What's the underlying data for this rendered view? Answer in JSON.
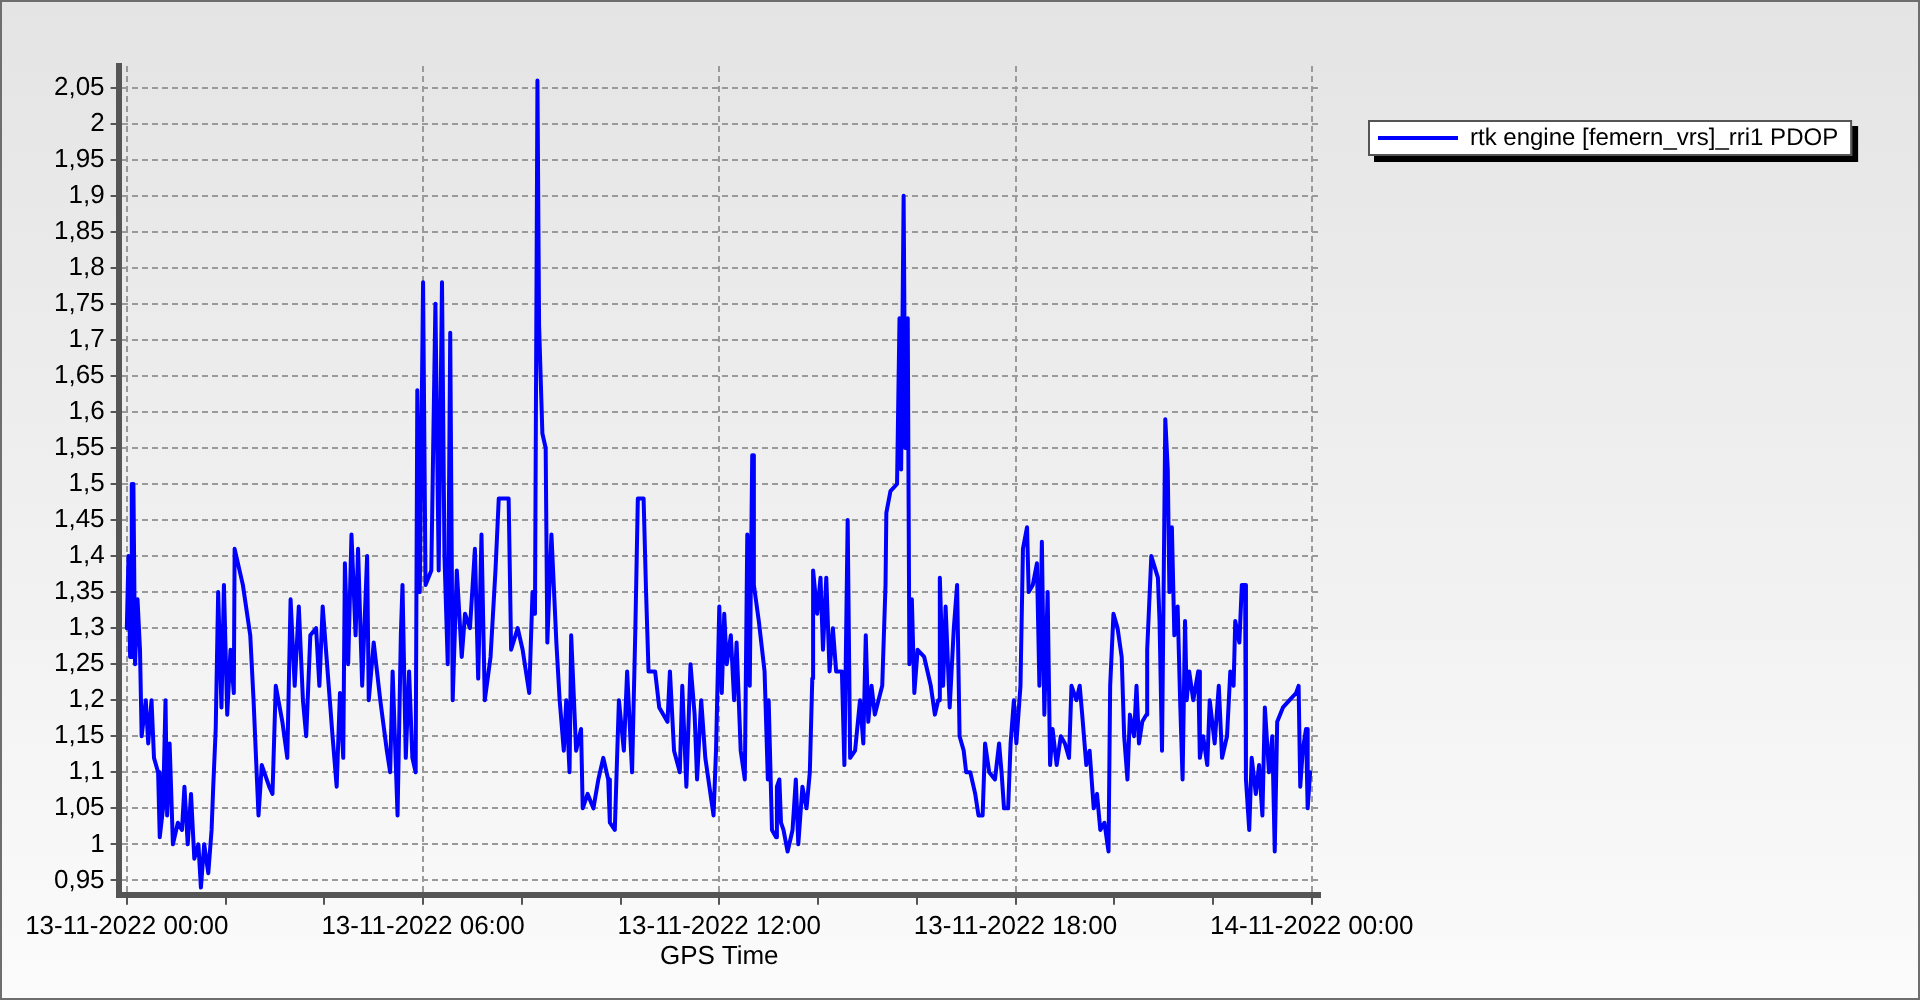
{
  "chart_data": {
    "type": "line",
    "xlabel": "GPS Time",
    "x": [
      "2022-11-13T00:00",
      "2022-11-13T00:02",
      "2022-11-13T00:04",
      "2022-11-13T00:06",
      "2022-11-13T00:08",
      "2022-11-13T00:10",
      "2022-11-13T00:13",
      "2022-11-13T00:16",
      "2022-11-13T00:18",
      "2022-11-13T00:23",
      "2022-11-13T00:26",
      "2022-11-13T00:30",
      "2022-11-13T00:33",
      "2022-11-13T00:38",
      "2022-11-13T00:40",
      "2022-11-13T00:44",
      "2022-11-13T00:47",
      "2022-11-13T00:49",
      "2022-11-13T00:52",
      "2022-11-13T00:56",
      "2022-11-13T01:02",
      "2022-11-13T01:07",
      "2022-11-13T01:10",
      "2022-11-13T01:14",
      "2022-11-13T01:18",
      "2022-11-13T01:22",
      "2022-11-13T01:27",
      "2022-11-13T01:30",
      "2022-11-13T01:34",
      "2022-11-13T01:39",
      "2022-11-13T01:43",
      "2022-11-13T01:45",
      "2022-11-13T01:48",
      "2022-11-13T01:51",
      "2022-11-13T01:55",
      "2022-11-13T01:58",
      "2022-11-13T02:02",
      "2022-11-13T02:06",
      "2022-11-13T02:10",
      "2022-11-13T02:11",
      "2022-11-13T02:21",
      "2022-11-13T02:30",
      "2022-11-13T02:34",
      "2022-11-13T02:40",
      "2022-11-13T02:44",
      "2022-11-13T02:53",
      "2022-11-13T02:57",
      "2022-11-13T03:01",
      "2022-11-13T03:09",
      "2022-11-13T03:15",
      "2022-11-13T03:19",
      "2022-11-13T03:24",
      "2022-11-13T03:29",
      "2022-11-13T03:34",
      "2022-11-13T03:38",
      "2022-11-13T03:43",
      "2022-11-13T03:50",
      "2022-11-13T03:54",
      "2022-11-13T03:58",
      "2022-11-13T04:06",
      "2022-11-13T04:10",
      "2022-11-13T04:15",
      "2022-11-13T04:19",
      "2022-11-13T04:23",
      "2022-11-13T04:25",
      "2022-11-13T04:29",
      "2022-11-13T04:33",
      "2022-11-13T04:38",
      "2022-11-13T04:41",
      "2022-11-13T04:46",
      "2022-11-13T04:52",
      "2022-11-13T04:54",
      "2022-11-13T05:00",
      "2022-11-13T05:08",
      "2022-11-13T05:16",
      "2022-11-13T05:20",
      "2022-11-13T05:23",
      "2022-11-13T05:29",
      "2022-11-13T05:33",
      "2022-11-13T05:35",
      "2022-11-13T05:39",
      "2022-11-13T05:43",
      "2022-11-13T05:47",
      "2022-11-13T05:51",
      "2022-11-13T05:53",
      "2022-11-13T05:56",
      "2022-11-13T06:00",
      "2022-11-13T06:03",
      "2022-11-13T06:10",
      "2022-11-13T06:15",
      "2022-11-13T06:19",
      "2022-11-13T06:23",
      "2022-11-13T06:26",
      "2022-11-13T06:30",
      "2022-11-13T06:33",
      "2022-11-13T06:36",
      "2022-11-13T06:41",
      "2022-11-13T06:47",
      "2022-11-13T06:51",
      "2022-11-13T06:57",
      "2022-11-13T07:03",
      "2022-11-13T07:07",
      "2022-11-13T07:11",
      "2022-11-13T07:15",
      "2022-11-13T07:22",
      "2022-11-13T07:28",
      "2022-11-13T07:32",
      "2022-11-13T07:44",
      "2022-11-13T07:47",
      "2022-11-13T07:55",
      "2022-11-13T08:01",
      "2022-11-13T08:09",
      "2022-11-13T08:13",
      "2022-11-13T08:16",
      "2022-11-13T08:19",
      "2022-11-13T08:21",
      "2022-11-13T08:25",
      "2022-11-13T08:29",
      "2022-11-13T08:31",
      "2022-11-13T08:36",
      "2022-11-13T08:42",
      "2022-11-13T08:46",
      "2022-11-13T08:51",
      "2022-11-13T08:54",
      "2022-11-13T08:58",
      "2022-11-13T09:00",
      "2022-11-13T09:06",
      "2022-11-13T09:12",
      "2022-11-13T09:14",
      "2022-11-13T09:20",
      "2022-11-13T09:27",
      "2022-11-13T09:33",
      "2022-11-13T09:39",
      "2022-11-13T09:45",
      "2022-11-13T09:47",
      "2022-11-13T09:53",
      "2022-11-13T09:58",
      "2022-11-13T10:04",
      "2022-11-13T10:08",
      "2022-11-13T10:14",
      "2022-11-13T10:18",
      "2022-11-13T10:21",
      "2022-11-13T10:28",
      "2022-11-13T10:31",
      "2022-11-13T10:34",
      "2022-11-13T10:42",
      "2022-11-13T10:47",
      "2022-11-13T10:57",
      "2022-11-13T11:00",
      "2022-11-13T11:05",
      "2022-11-13T11:12",
      "2022-11-13T11:15",
      "2022-11-13T11:20",
      "2022-11-13T11:25",
      "2022-11-13T11:30",
      "2022-11-13T11:33",
      "2022-11-13T11:38",
      "2022-11-13T11:43",
      "2022-11-13T11:48",
      "2022-11-13T11:53",
      "2022-11-13T11:56",
      "2022-11-13T12:00",
      "2022-11-13T12:03",
      "2022-11-13T12:06",
      "2022-11-13T12:09",
      "2022-11-13T12:14",
      "2022-11-13T12:18",
      "2022-11-13T12:21",
      "2022-11-13T12:26",
      "2022-11-13T12:31",
      "2022-11-13T12:34",
      "2022-11-13T12:37",
      "2022-11-13T12:40",
      "2022-11-13T12:42",
      "2022-11-13T12:48",
      "2022-11-13T12:55",
      "2022-11-13T12:59",
      "2022-11-13T13:00",
      "2022-11-13T13:04",
      "2022-11-13T13:09",
      "2022-11-13T13:10",
      "2022-11-13T13:13",
      "2022-11-13T13:15",
      "2022-11-13T13:18",
      "2022-11-13T13:23",
      "2022-11-13T13:29",
      "2022-11-13T13:33",
      "2022-11-13T13:36",
      "2022-11-13T13:41",
      "2022-11-13T13:46",
      "2022-11-13T13:50",
      "2022-11-13T13:53",
      "2022-11-13T13:54",
      "2022-11-13T13:59",
      "2022-11-13T14:03",
      "2022-11-13T14:06",
      "2022-11-13T14:10",
      "2022-11-13T14:14",
      "2022-11-13T14:18",
      "2022-11-13T14:22",
      "2022-11-13T14:29",
      "2022-11-13T14:32",
      "2022-11-13T14:36",
      "2022-11-13T14:39",
      "2022-11-13T14:45",
      "2022-11-13T14:51",
      "2022-11-13T14:55",
      "2022-11-13T14:58",
      "2022-11-13T15:01",
      "2022-11-13T15:05",
      "2022-11-13T15:09",
      "2022-11-13T15:18",
      "2022-11-13T15:22",
      "2022-11-13T15:23",
      "2022-11-13T15:28",
      "2022-11-13T15:36",
      "2022-11-13T15:39",
      "2022-11-13T15:41",
      "2022-11-13T15:44",
      "2022-11-13T15:46",
      "2022-11-13T15:49",
      "2022-11-13T15:51",
      "2022-11-13T15:54",
      "2022-11-13T15:57",
      "2022-11-13T16:01",
      "2022-11-13T16:09",
      "2022-11-13T16:17",
      "2022-11-13T16:22",
      "2022-11-13T16:26",
      "2022-11-13T16:28",
      "2022-11-13T16:32",
      "2022-11-13T16:35",
      "2022-11-13T16:40",
      "2022-11-13T16:45",
      "2022-11-13T16:49",
      "2022-11-13T16:52",
      "2022-11-13T16:57",
      "2022-11-13T17:00",
      "2022-11-13T17:05",
      "2022-11-13T17:11",
      "2022-11-13T17:15",
      "2022-11-13T17:20",
      "2022-11-13T17:23",
      "2022-11-13T17:28",
      "2022-11-13T17:35",
      "2022-11-13T17:40",
      "2022-11-13T17:43",
      "2022-11-13T17:46",
      "2022-11-13T17:51",
      "2022-11-13T17:54",
      "2022-11-13T17:58",
      "2022-11-13T18:01",
      "2022-11-13T18:06",
      "2022-11-13T18:09",
      "2022-11-13T18:14",
      "2022-11-13T18:16",
      "2022-11-13T18:21",
      "2022-11-13T18:26",
      "2022-11-13T18:29",
      "2022-11-13T18:32",
      "2022-11-13T18:35",
      "2022-11-13T18:39",
      "2022-11-13T18:42",
      "2022-11-13T18:45",
      "2022-11-13T18:50",
      "2022-11-13T18:55",
      "2022-11-13T19:00",
      "2022-11-13T19:05",
      "2022-11-13T19:08",
      "2022-11-13T19:14",
      "2022-11-13T19:18",
      "2022-11-13T19:21",
      "2022-11-13T19:26",
      "2022-11-13T19:30",
      "2022-11-13T19:35",
      "2022-11-13T19:39",
      "2022-11-13T19:43",
      "2022-11-13T19:48",
      "2022-11-13T19:53",
      "2022-11-13T19:55",
      "2022-11-13T19:59",
      "2022-11-13T20:04",
      "2022-11-13T20:09",
      "2022-11-13T20:12",
      "2022-11-13T20:16",
      "2022-11-13T20:19",
      "2022-11-13T20:24",
      "2022-11-13T20:27",
      "2022-11-13T20:30",
      "2022-11-13T20:34",
      "2022-11-13T20:39",
      "2022-11-13T20:40",
      "2022-11-13T20:45",
      "2022-11-13T20:53",
      "2022-11-13T20:55",
      "2022-11-13T20:58",
      "2022-11-13T21:02",
      "2022-11-13T21:05",
      "2022-11-13T21:07",
      "2022-11-13T21:10",
      "2022-11-13T21:13",
      "2022-11-13T21:17",
      "2022-11-13T21:20",
      "2022-11-13T21:23",
      "2022-11-13T21:26",
      "2022-11-13T21:28",
      "2022-11-13T21:31",
      "2022-11-13T21:36",
      "2022-11-13T21:42",
      "2022-11-13T21:44",
      "2022-11-13T21:48",
      "2022-11-13T21:53",
      "2022-11-13T21:56",
      "2022-11-13T22:02",
      "2022-11-13T22:07",
      "2022-11-13T22:11",
      "2022-11-13T22:17",
      "2022-11-13T22:21",
      "2022-11-13T22:25",
      "2022-11-13T22:27",
      "2022-11-13T22:32",
      "2022-11-13T22:35",
      "2022-11-13T22:39",
      "2022-11-13T22:40",
      "2022-11-13T22:44",
      "2022-11-13T22:47",
      "2022-11-13T22:52",
      "2022-11-13T22:56",
      "2022-11-13T23:00",
      "2022-11-13T23:03",
      "2022-11-13T23:08",
      "2022-11-13T23:12",
      "2022-11-13T23:15",
      "2022-11-13T23:18",
      "2022-11-13T23:25",
      "2022-11-13T23:33",
      "2022-11-13T23:41",
      "2022-11-13T23:44",
      "2022-11-13T23:46",
      "2022-11-13T23:49",
      "2022-11-13T23:53",
      "2022-11-13T23:55",
      "2022-11-13T23:58"
    ],
    "series": [
      {
        "name": "rtk engine [femern_vrs]_rri1 PDOP",
        "color": "#0000ff",
        "values": [
          1.3,
          1.4,
          1.26,
          1.5,
          1.5,
          1.25,
          1.34,
          1.27,
          1.15,
          1.2,
          1.14,
          1.2,
          1.12,
          1.1,
          1.01,
          1.05,
          1.2,
          1.04,
          1.14,
          1.0,
          1.03,
          1.02,
          1.08,
          1.0,
          1.07,
          0.98,
          1.0,
          0.94,
          1.0,
          0.96,
          1.02,
          1.08,
          1.16,
          1.35,
          1.19,
          1.36,
          1.18,
          1.27,
          1.21,
          1.41,
          1.36,
          1.29,
          1.2,
          1.04,
          1.11,
          1.08,
          1.07,
          1.22,
          1.17,
          1.12,
          1.34,
          1.22,
          1.33,
          1.2,
          1.15,
          1.29,
          1.3,
          1.22,
          1.33,
          1.21,
          1.15,
          1.08,
          1.21,
          1.12,
          1.39,
          1.25,
          1.43,
          1.29,
          1.41,
          1.22,
          1.4,
          1.2,
          1.28,
          1.2,
          1.13,
          1.1,
          1.24,
          1.04,
          1.29,
          1.36,
          1.12,
          1.24,
          1.12,
          1.1,
          1.63,
          1.35,
          1.78,
          1.36,
          1.38,
          1.75,
          1.38,
          1.78,
          1.4,
          1.25,
          1.71,
          1.2,
          1.38,
          1.26,
          1.32,
          1.3,
          1.41,
          1.23,
          1.43,
          1.2,
          1.26,
          1.38,
          1.48,
          1.48,
          1.27,
          1.3,
          1.27,
          1.21,
          1.35,
          1.32,
          2.06,
          1.72,
          1.57,
          1.55,
          1.28,
          1.43,
          1.28,
          1.2,
          1.13,
          1.2,
          1.1,
          1.29,
          1.13,
          1.16,
          1.05,
          1.07,
          1.05,
          1.09,
          1.12,
          1.09,
          1.03,
          1.02,
          1.2,
          1.13,
          1.24,
          1.1,
          1.3,
          1.48,
          1.48,
          1.35,
          1.24,
          1.24,
          1.19,
          1.17,
          1.24,
          1.13,
          1.1,
          1.22,
          1.08,
          1.25,
          1.18,
          1.09,
          1.2,
          1.12,
          1.08,
          1.04,
          1.13,
          1.33,
          1.21,
          1.32,
          1.25,
          1.29,
          1.2,
          1.28,
          1.13,
          1.09,
          1.43,
          1.22,
          1.54,
          1.36,
          1.31,
          1.24,
          1.09,
          1.2,
          1.02,
          1.01,
          1.08,
          1.09,
          1.03,
          1.02,
          0.99,
          1.02,
          1.09,
          1.0,
          1.08,
          1.05,
          1.1,
          1.23,
          1.38,
          1.32,
          1.37,
          1.27,
          1.37,
          1.24,
          1.3,
          1.24,
          1.24,
          1.11,
          1.45,
          1.12,
          1.13,
          1.2,
          1.14,
          1.29,
          1.17,
          1.22,
          1.18,
          1.22,
          1.36,
          1.46,
          1.49,
          1.5,
          1.73,
          1.52,
          1.9,
          1.55,
          1.73,
          1.25,
          1.34,
          1.21,
          1.27,
          1.26,
          1.22,
          1.18,
          1.2,
          1.37,
          1.22,
          1.33,
          1.19,
          1.3,
          1.36,
          1.15,
          1.13,
          1.1,
          1.1,
          1.07,
          1.04,
          1.04,
          1.14,
          1.1,
          1.09,
          1.14,
          1.1,
          1.05,
          1.05,
          1.14,
          1.2,
          1.14,
          1.22,
          1.41,
          1.44,
          1.35,
          1.36,
          1.39,
          1.22,
          1.42,
          1.18,
          1.35,
          1.11,
          1.16,
          1.11,
          1.15,
          1.14,
          1.12,
          1.22,
          1.2,
          1.22,
          1.18,
          1.11,
          1.13,
          1.05,
          1.07,
          1.02,
          1.03,
          0.99,
          1.22,
          1.32,
          1.3,
          1.26,
          1.15,
          1.09,
          1.18,
          1.15,
          1.22,
          1.14,
          1.17,
          1.18,
          1.27,
          1.4,
          1.37,
          1.31,
          1.13,
          1.59,
          1.52,
          1.35,
          1.44,
          1.29,
          1.33,
          1.2,
          1.09,
          1.31,
          1.2,
          1.24,
          1.2,
          1.24,
          1.12,
          1.15,
          1.11,
          1.2,
          1.14,
          1.22,
          1.12,
          1.15,
          1.24,
          1.22,
          1.31,
          1.28,
          1.36,
          1.36,
          1.09,
          1.02,
          1.12,
          1.07,
          1.11,
          1.04,
          1.19,
          1.1,
          1.15,
          0.99,
          1.17,
          1.19,
          1.2,
          1.21,
          1.22,
          1.08,
          1.13,
          1.16,
          1.05,
          1.1
        ]
      }
    ],
    "xlim": [
      "2022-11-12T23:50",
      "2022-11-14T00:10"
    ],
    "xticks": [
      {
        "value": "2022-11-13T00:00",
        "label": "13-11-2022 00:00"
      },
      {
        "value": "2022-11-13T02:00",
        "label": null
      },
      {
        "value": "2022-11-13T04:00",
        "label": null
      },
      {
        "value": "2022-11-13T06:00",
        "label": "13-11-2022 06:00"
      },
      {
        "value": "2022-11-13T08:00",
        "label": null
      },
      {
        "value": "2022-11-13T10:00",
        "label": null
      },
      {
        "value": "2022-11-13T12:00",
        "label": "13-11-2022 12:00"
      },
      {
        "value": "2022-11-13T14:00",
        "label": null
      },
      {
        "value": "2022-11-13T16:00",
        "label": null
      },
      {
        "value": "2022-11-13T18:00",
        "label": "13-11-2022 18:00"
      },
      {
        "value": "2022-11-13T20:00",
        "label": null
      },
      {
        "value": "2022-11-13T22:00",
        "label": null
      },
      {
        "value": "2022-11-14T00:00",
        "label": "14-11-2022 00:00"
      }
    ],
    "ylim": [
      0.93,
      2.08
    ],
    "yticks": [
      {
        "value": 0.95,
        "label": "0,95"
      },
      1,
      {
        "value": 1.05,
        "label": "1,05"
      },
      {
        "value": 1.1,
        "label": "1,1"
      },
      {
        "value": 1.15,
        "label": "1,15"
      },
      {
        "value": 1.2,
        "label": "1,2"
      },
      {
        "value": 1.25,
        "label": "1,25"
      },
      {
        "value": 1.3,
        "label": "1,3"
      },
      {
        "value": 1.35,
        "label": "1,35"
      },
      {
        "value": 1.4,
        "label": "1,4"
      },
      {
        "value": 1.45,
        "label": "1,45"
      },
      {
        "value": 1.5,
        "label": "1,5"
      },
      {
        "value": 1.55,
        "label": "1,55"
      },
      {
        "value": 1.6,
        "label": "1,6"
      },
      {
        "value": 1.65,
        "label": "1,65"
      },
      {
        "value": 1.7,
        "label": "1,7"
      },
      {
        "value": 1.75,
        "label": "1,75"
      },
      {
        "value": 1.8,
        "label": "1,8"
      },
      {
        "value": 1.85,
        "label": "1,85"
      },
      {
        "value": 1.9,
        "label": "1,9"
      },
      {
        "value": 1.95,
        "label": "1,95"
      },
      2,
      {
        "value": 2.05,
        "label": "2,05"
      }
    ],
    "grid": true,
    "legend": "top right"
  }
}
